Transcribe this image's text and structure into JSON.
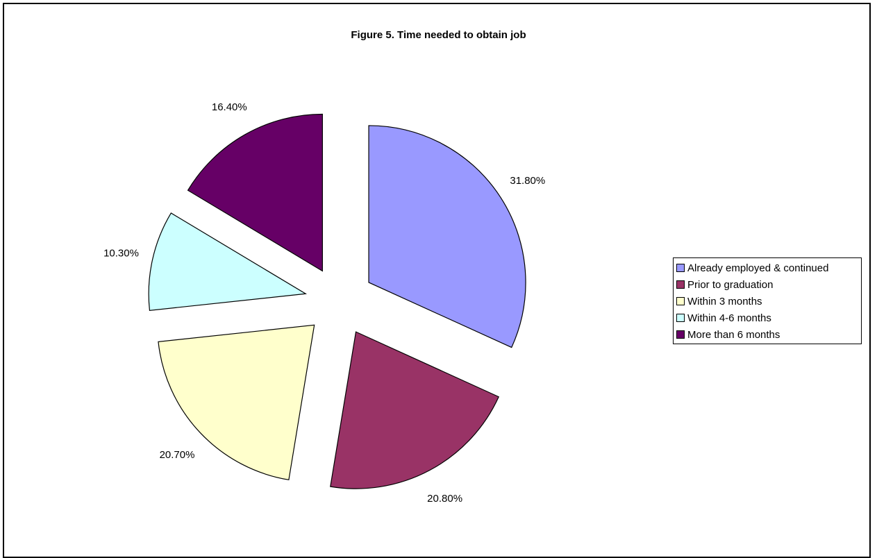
{
  "chart_data": {
    "type": "pie",
    "title": "Figure 5.  Time needed to obtain job",
    "exploded": true,
    "start_angle_deg": 0,
    "direction": "clockwise",
    "legend_position": "right",
    "slices": [
      {
        "label": "Already employed & continued",
        "value": 31.8,
        "display": "31.80%",
        "color": "#9999ff"
      },
      {
        "label": "Prior to graduation",
        "value": 20.8,
        "display": "20.80%",
        "color": "#993366"
      },
      {
        "label": "Within 3 months",
        "value": 20.7,
        "display": "20.70%",
        "color": "#ffffcc"
      },
      {
        "label": "Within 4-6 months",
        "value": 10.3,
        "display": "10.30%",
        "color": "#ccffff"
      },
      {
        "label": "More than 6 months",
        "value": 16.4,
        "display": "16.40%",
        "color": "#660066"
      }
    ]
  }
}
